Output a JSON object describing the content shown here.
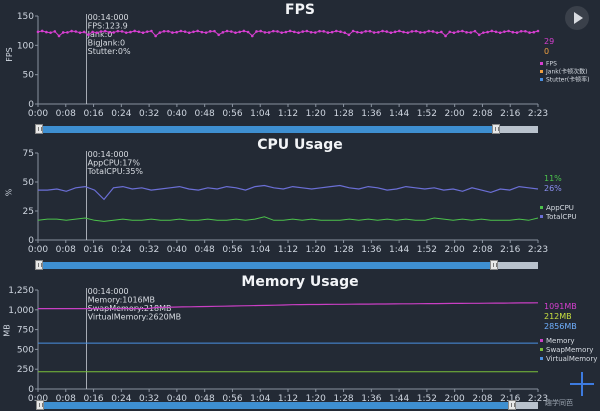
{
  "time_ticks": [
    "0:00",
    "0:08",
    "0:16",
    "0:24",
    "0:32",
    "0:40",
    "0:48",
    "0:56",
    "1:04",
    "1:12",
    "1:20",
    "1:28",
    "1:36",
    "1:44",
    "1:52",
    "2:00",
    "2:08",
    "2:16",
    "2:23"
  ],
  "fps": {
    "title": "FPS",
    "ylabel": "FPS",
    "yticks": [
      "150",
      "100",
      "50",
      "0"
    ],
    "info": [
      "00:14:000",
      "FPS:123.9",
      "Jank:0",
      "BigJank:0",
      "Stutter:0%"
    ],
    "current_values": {
      "jank": "29",
      "stutter": "0"
    },
    "legend": [
      "FPS",
      "Jank(卡顿次数)",
      "Stutter(卡顿率)"
    ],
    "colors": {
      "fps": "#d63fd0",
      "jank": "#f0a040",
      "stutter": "#4a90e2"
    }
  },
  "cpu": {
    "title": "CPU Usage",
    "ylabel": "%",
    "yticks": [
      "75",
      "50",
      "25",
      "0"
    ],
    "info": [
      "00:14:000",
      "AppCPU:17%",
      "TotalCPU:35%"
    ],
    "current_values": {
      "app": "11%",
      "total": "26%"
    },
    "legend": [
      "AppCPU",
      "TotalCPU"
    ],
    "colors": {
      "app": "#4cc24c",
      "total": "#6b6fd6"
    }
  },
  "mem": {
    "title": "Memory Usage",
    "ylabel": "MB",
    "yticks": [
      "1,250",
      "1,000",
      "750",
      "500",
      "250",
      "0"
    ],
    "info": [
      "00:14:000",
      "Memory:1016MB",
      "SwapMemory:218MB",
      "VirtualMemory:2620MB"
    ],
    "current_values": {
      "memory": "1091MB",
      "swap": "212MB",
      "virtual": "2856MB"
    },
    "legend": [
      "Memory",
      "SwapMemory",
      "VirtualMemory"
    ],
    "colors": {
      "memory": "#c93fc4",
      "swap": "#7bbf3a",
      "virtual": "#4a90e2"
    }
  },
  "watermark": "趣学同芭"
}
